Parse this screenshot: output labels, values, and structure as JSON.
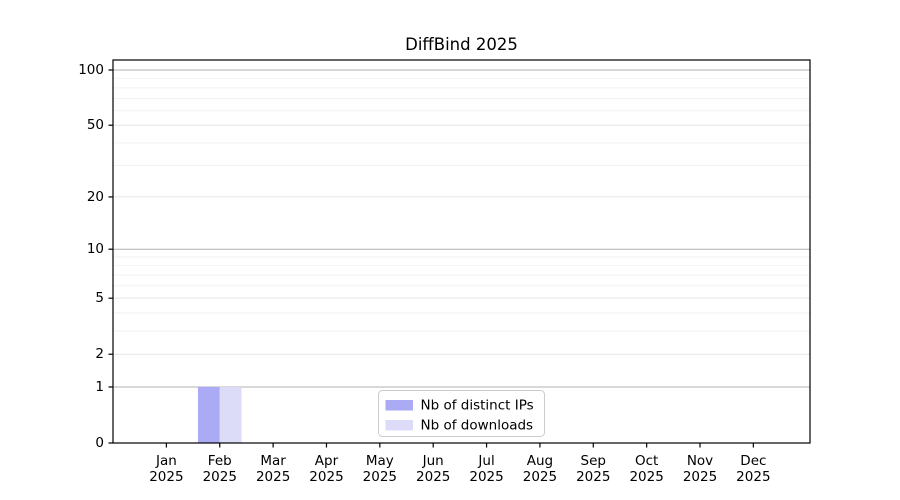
{
  "chart_data": {
    "type": "bar",
    "title": "DiffBind 2025",
    "x_year": "2025",
    "categories": [
      "Jan",
      "Feb",
      "Mar",
      "Apr",
      "May",
      "Jun",
      "Jul",
      "Aug",
      "Sep",
      "Oct",
      "Nov",
      "Dec"
    ],
    "series": [
      {
        "name": "Nb of distinct IPs",
        "color": "#aaaaf5",
        "values": [
          0,
          1,
          0,
          0,
          0,
          0,
          0,
          0,
          0,
          0,
          0,
          0
        ]
      },
      {
        "name": "Nb of downloads",
        "color": "#dcdcf8",
        "values": [
          0,
          1,
          0,
          0,
          0,
          0,
          0,
          0,
          0,
          0,
          0,
          0
        ]
      }
    ],
    "y_axis": {
      "scale": "log10(1+v)",
      "ticks": [
        0,
        1,
        2,
        5,
        10,
        20,
        50,
        100
      ],
      "top_value": 113
    },
    "grid": {
      "major": [
        1,
        10,
        100
      ],
      "sub": [
        2,
        5,
        20,
        50
      ],
      "minor": [
        3,
        4,
        6,
        7,
        8,
        9,
        30,
        40,
        60,
        70,
        80,
        90
      ]
    },
    "colors": {
      "grid_major": "#b0b0b0",
      "grid_sub": "#e6e6e6",
      "grid_minor": "#f2f2f2",
      "axis": "#000000",
      "legend_border": "#cccccc",
      "legend_bg": "#ffffff",
      "text": "#000000",
      "background": "#ffffff"
    },
    "legend": {
      "position": "lower center",
      "entries": [
        "Nb of distinct IPs",
        "Nb of downloads"
      ]
    }
  }
}
